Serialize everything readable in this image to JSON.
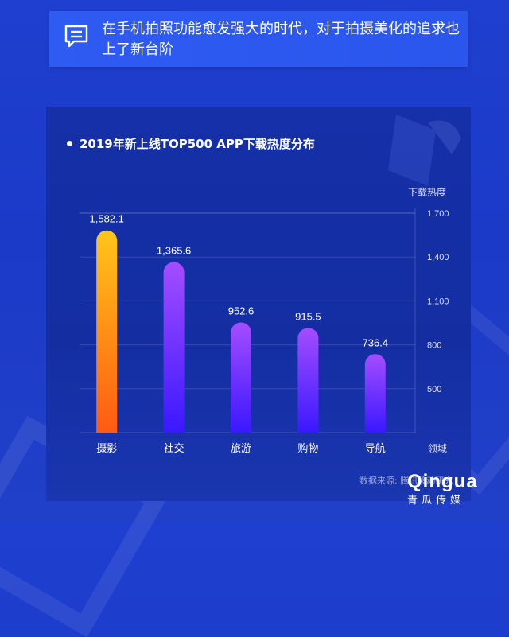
{
  "banner": {
    "icon": "message-icon",
    "text": "在手机拍照功能愈发强大的时代，对于拍摄美化的追求也上了新台阶"
  },
  "chart_data": {
    "type": "bar",
    "title": "2019年新上线TOP500 APP下载热度分布",
    "xlabel": "领域",
    "ylabel": "下载热度",
    "categories": [
      "摄影",
      "社交",
      "旅游",
      "购物",
      "导航"
    ],
    "values": [
      1582.1,
      1365.6,
      952.6,
      915.5,
      736.4
    ],
    "value_labels": [
      "1,582.1",
      "1,365.6",
      "952.6",
      "915.5",
      "736.4"
    ],
    "yticks": [
      500,
      800,
      1100,
      1400,
      1700
    ],
    "ytick_labels": [
      "500",
      "800",
      "1,100",
      "1,400",
      "1,700"
    ],
    "ylim": [
      200,
      1700
    ],
    "grid": true,
    "colors": {
      "highlight_top": "#ffc61a",
      "highlight_bottom": "#ff5a12",
      "bar_top": "#a44dff",
      "bar_bottom": "#3a18ff"
    }
  },
  "source": "数据来源: 腾讯移动研究",
  "logo": {
    "main": "Qingua",
    "sub": "青瓜传媒"
  }
}
